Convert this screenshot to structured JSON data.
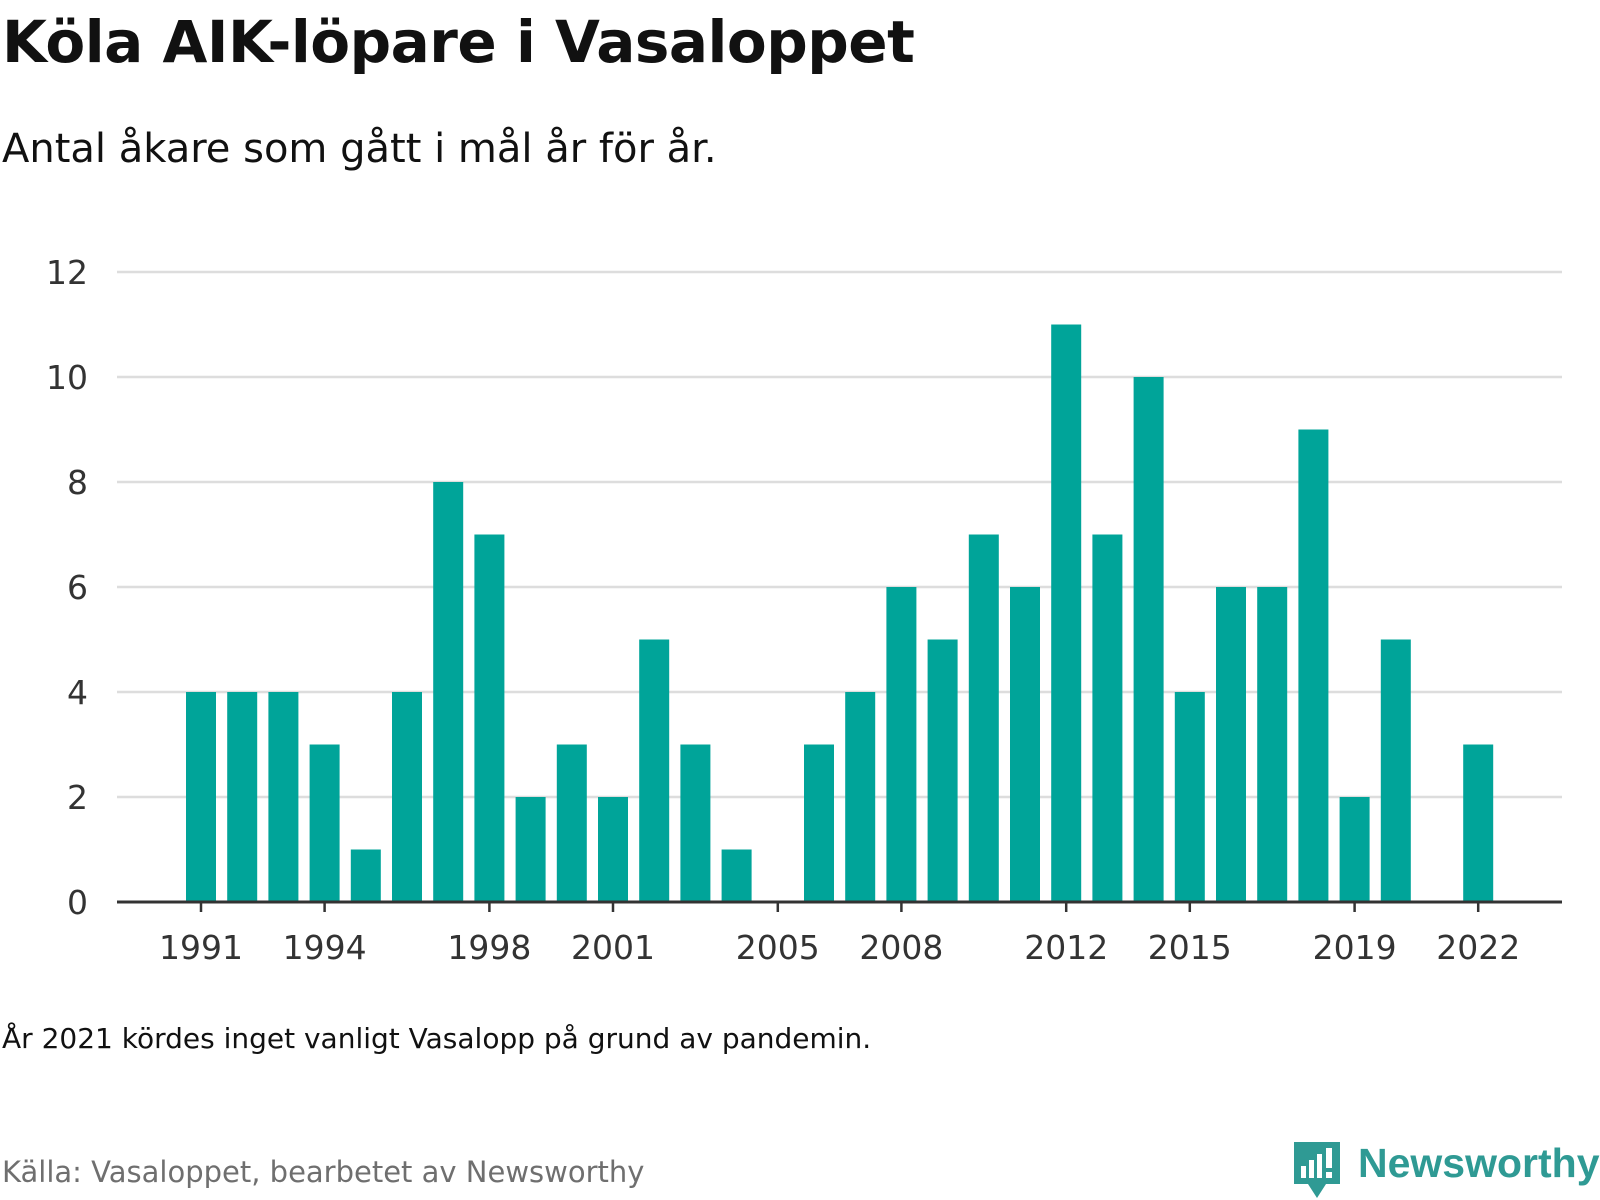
{
  "header": {
    "title": "Köla AIK-löpare i Vasaloppet",
    "subtitle": "Antal åkare som gått i mål år för år."
  },
  "footer": {
    "note": "År 2021 kördes inget vanligt Vasalopp på grund av pandemin.",
    "source": "Källa: Vasaloppet, bearbetet av Newsworthy",
    "brand": "Newsworthy",
    "brand_icon": "newsworthy-logo-icon"
  },
  "colors": {
    "bar": "#00A499",
    "grid": "#dddddd",
    "axis": "#333333",
    "brand": "#2f9a94"
  },
  "chart_data": {
    "type": "bar",
    "title": "Köla AIK-löpare i Vasaloppet",
    "subtitle": "Antal åkare som gått i mål år för år.",
    "xlabel": "",
    "ylabel": "",
    "ylim": [
      0,
      12
    ],
    "yticks": [
      0,
      2,
      4,
      6,
      8,
      10,
      12
    ],
    "grid": true,
    "legend": "none",
    "categories": [
      1991,
      1992,
      1993,
      1994,
      1995,
      1996,
      1997,
      1998,
      1999,
      2000,
      2001,
      2002,
      2003,
      2004,
      2005,
      2006,
      2007,
      2008,
      2009,
      2010,
      2011,
      2012,
      2013,
      2014,
      2015,
      2016,
      2017,
      2018,
      2019,
      2020,
      2021,
      2022
    ],
    "values": [
      4,
      4,
      4,
      3,
      1,
      4,
      8,
      7,
      2,
      3,
      2,
      5,
      3,
      1,
      0,
      3,
      4,
      6,
      5,
      7,
      6,
      11,
      7,
      10,
      4,
      6,
      6,
      9,
      2,
      5,
      null,
      3
    ],
    "xtick_labels": [
      "1991",
      "1994",
      "1998",
      "2001",
      "2005",
      "2008",
      "2012",
      "2015",
      "2019",
      "2022"
    ]
  }
}
